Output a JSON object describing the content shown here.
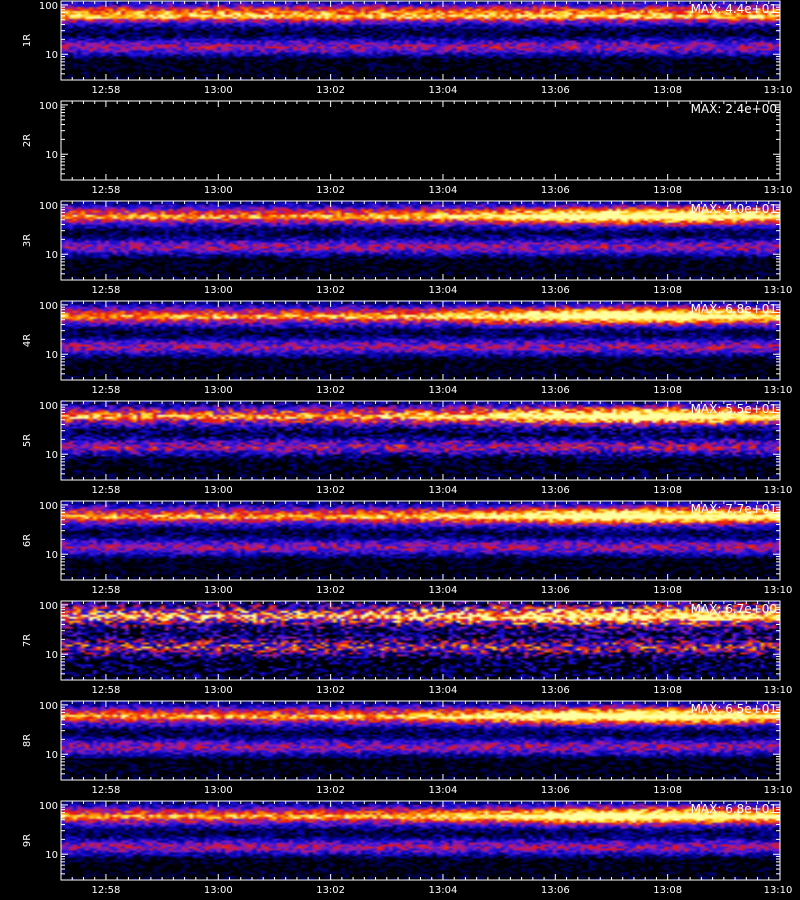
{
  "chart_data": {
    "type": "heatmap",
    "x_ticks": [
      "12:58",
      "13:00",
      "13:02",
      "13:04",
      "13:06",
      "13:08",
      "13:10"
    ],
    "x_range": [
      "12:57:12",
      "13:10:00"
    ],
    "y_scale": "log",
    "y_range": [
      3,
      120
    ],
    "y_ticks": [
      "100",
      "10"
    ],
    "colormap": [
      "#000000",
      "#0000c0",
      "#6a2cc8",
      "#e01010",
      "#ff8c00",
      "#ffff40"
    ],
    "panels": [
      {
        "label": "1R",
        "max": "MAX: 4.4e+01",
        "empty": false,
        "intensity_trend": "flat",
        "band_center": 65,
        "noise": 0.35
      },
      {
        "label": "2R",
        "max": "MAX: 2.4e+00",
        "empty": true,
        "intensity_trend": "none",
        "band_center": 0,
        "noise": 0
      },
      {
        "label": "3R",
        "max": "MAX: 4.0e+01",
        "empty": false,
        "intensity_trend": "rising",
        "band_center": 60,
        "noise": 0.35
      },
      {
        "label": "4R",
        "max": "MAX: 6.8e+01",
        "empty": false,
        "intensity_trend": "rising",
        "band_center": 60,
        "noise": 0.35
      },
      {
        "label": "5R",
        "max": "MAX: 5.5e+01",
        "empty": false,
        "intensity_trend": "rising",
        "band_center": 60,
        "noise": 0.45
      },
      {
        "label": "6R",
        "max": "MAX: 7.7e+01",
        "empty": false,
        "intensity_trend": "rising",
        "band_center": 60,
        "noise": 0.35
      },
      {
        "label": "7R",
        "max": "MAX: 6.7e+00",
        "empty": false,
        "intensity_trend": "rising",
        "band_center": 60,
        "noise": 0.8
      },
      {
        "label": "8R",
        "max": "MAX: 6.5e+01",
        "empty": false,
        "intensity_trend": "rising",
        "band_center": 60,
        "noise": 0.35
      },
      {
        "label": "9R",
        "max": "MAX: 6.8e+01",
        "empty": false,
        "intensity_trend": "rising",
        "band_center": 60,
        "noise": 0.35
      }
    ]
  }
}
